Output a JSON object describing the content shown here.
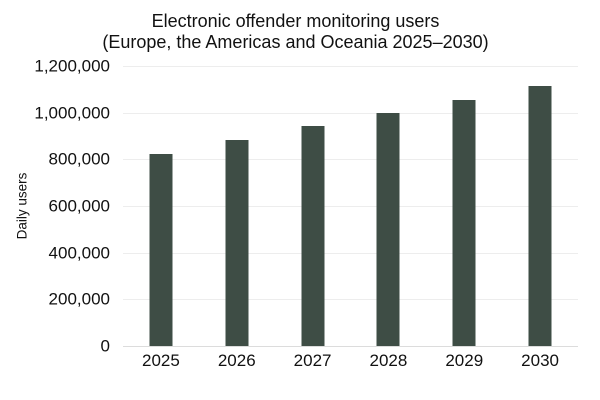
{
  "title": {
    "line1": "Electronic offender monitoring users",
    "line2": "(Europe, the Americas and Oceania 2025–2030)"
  },
  "y_axis": {
    "label": "Daily users",
    "ticks": [
      {
        "value": 1200000,
        "label": "1,200,000"
      },
      {
        "value": 1000000,
        "label": "1,000,000"
      },
      {
        "value": 800000,
        "label": "800,000"
      },
      {
        "value": 600000,
        "label": "600,000"
      },
      {
        "value": 400000,
        "label": "400,000"
      },
      {
        "value": 200000,
        "label": "200,000"
      },
      {
        "value": 0,
        "label": "0"
      }
    ]
  },
  "chart_data": {
    "type": "bar",
    "title": "Electronic offender monitoring users (Europe, the Americas and Oceania 2025–2030)",
    "categories": [
      "2025",
      "2026",
      "2027",
      "2028",
      "2029",
      "2030"
    ],
    "values": [
      825000,
      885000,
      945000,
      1000000,
      1055000,
      1115000
    ],
    "xlabel": "",
    "ylabel": "Daily users",
    "ylim": [
      0,
      1200000
    ],
    "ytick_step": 200000,
    "grid": "horizontal",
    "legend": "none",
    "bar_color": "#3e4d45"
  },
  "colors": {
    "bar": "#3e4d45",
    "gridline": "#ededed",
    "axis_line": "#dcdcdc",
    "text": "#111111",
    "background": "#ffffff"
  }
}
